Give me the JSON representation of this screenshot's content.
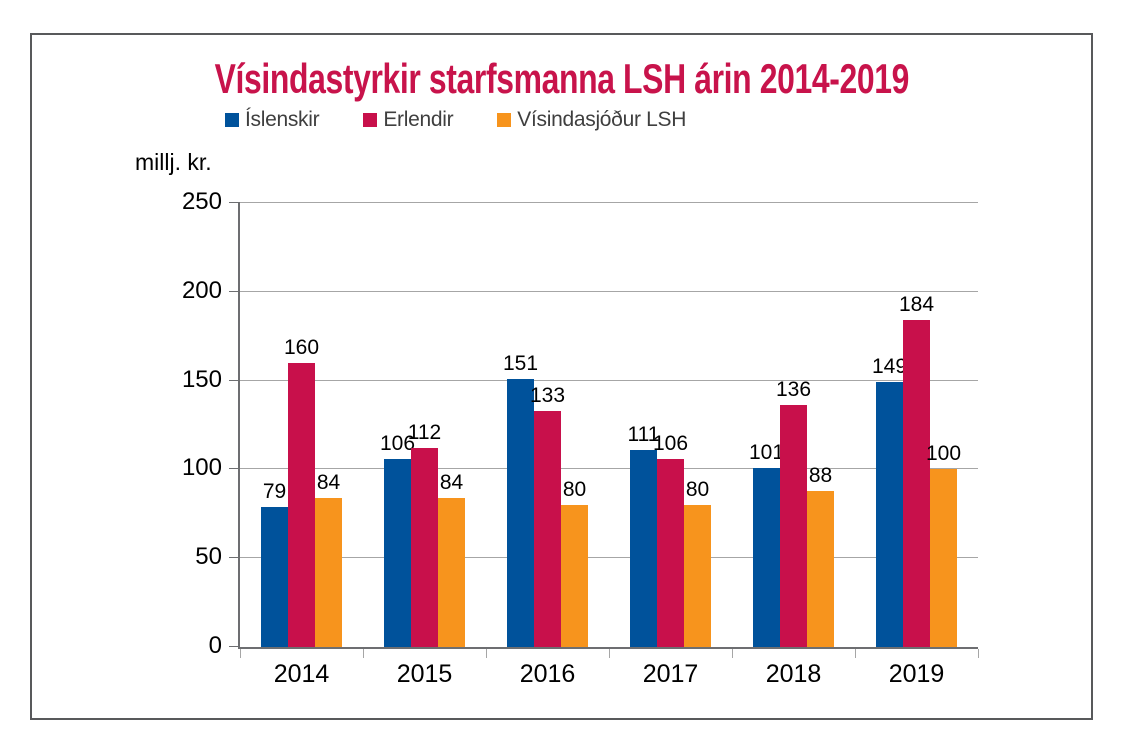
{
  "title": "Vísindastyrkir starfsmanna LSH árin 2014-2019",
  "title_color": "#c8134b",
  "frame_border_color": "#58595b",
  "y_axis_unit": "millj. kr.",
  "chart_data": {
    "type": "bar",
    "title": "Vísindastyrkir starfsmanna LSH árin 2014-2019",
    "categories": [
      "2014",
      "2015",
      "2016",
      "2017",
      "2018",
      "2019"
    ],
    "series": [
      {
        "name": "Íslenskir",
        "color": "#00529b",
        "values": [
          79,
          106,
          151,
          111,
          101,
          149
        ]
      },
      {
        "name": "Erlendir",
        "color": "#c8104b",
        "values": [
          160,
          112,
          133,
          106,
          136,
          184
        ]
      },
      {
        "name": "Vísindasjóður LSH",
        "color": "#f7941d",
        "values": [
          84,
          84,
          80,
          80,
          88,
          100
        ]
      }
    ],
    "xlabel": "",
    "ylabel": "millj. kr.",
    "ylim": [
      0,
      250
    ],
    "yticks": [
      0,
      50,
      100,
      150,
      200,
      250
    ],
    "grid": true,
    "legend_position": "top-left",
    "value_labels": true
  }
}
